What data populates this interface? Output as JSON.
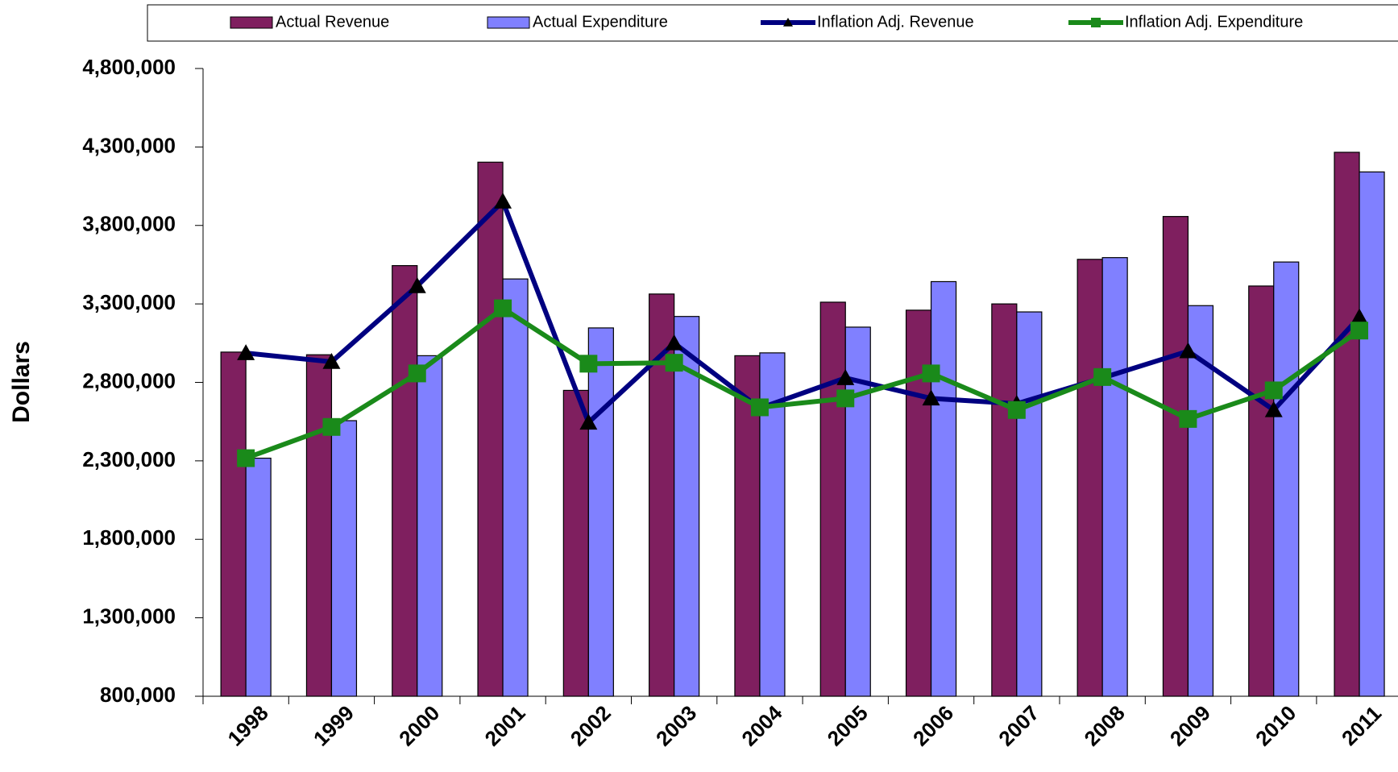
{
  "chart_data": {
    "type": "bar_line",
    "y_label": "Dollars",
    "categories": [
      "1998",
      "1999",
      "2000",
      "2001",
      "2002",
      "2003",
      "2004",
      "2005",
      "2006",
      "2007",
      "2008",
      "2009",
      "2010",
      "2011"
    ],
    "series": [
      {
        "name": "Actual Revenue",
        "type": "bar",
        "color": "#7f1f5f",
        "values": [
          2993000,
          2976000,
          3544000,
          4203000,
          2749000,
          3363000,
          2970000,
          3311000,
          3260000,
          3300000,
          3584000,
          3857000,
          3414000,
          4266000
        ]
      },
      {
        "name": "Actual Expenditure",
        "type": "bar",
        "color": "#8080ff",
        "values": [
          2317000,
          2556000,
          2970000,
          3459000,
          3147000,
          3220000,
          2988000,
          3152000,
          3442000,
          3249000,
          3595000,
          3289000,
          3567000,
          4141000
        ]
      },
      {
        "name": "Inflation Adj. Revenue",
        "type": "line",
        "color": "#000080",
        "marker": "triangle",
        "values": [
          2987000,
          2931000,
          3414000,
          3953000,
          2544000,
          3050000,
          2635000,
          2828000,
          2698000,
          2664000,
          2828000,
          2999000,
          2624000,
          3215000
        ]
      },
      {
        "name": "Inflation Adj. Expenditure",
        "type": "line",
        "color": "#1a8a1a",
        "marker": "square",
        "values": [
          2317000,
          2516000,
          2857000,
          3272000,
          2919000,
          2925000,
          2641000,
          2698000,
          2857000,
          2624000,
          2834000,
          2567000,
          2749000,
          3130000
        ]
      }
    ],
    "ylim": [
      800000,
      4800000
    ],
    "yticks": [
      {
        "value": 800000,
        "label": "800,000"
      },
      {
        "value": 1300000,
        "label": "1,300,000"
      },
      {
        "value": 1800000,
        "label": "1,800,000"
      },
      {
        "value": 2300000,
        "label": "2,300,000"
      },
      {
        "value": 2800000,
        "label": "2,800,000"
      },
      {
        "value": 3300000,
        "label": "3,300,000"
      },
      {
        "value": 3800000,
        "label": "3,800,000"
      },
      {
        "value": 4300000,
        "label": "4,300,000"
      },
      {
        "value": 4800000,
        "label": "4,800,000"
      }
    ],
    "legend": "top",
    "grid": false
  }
}
